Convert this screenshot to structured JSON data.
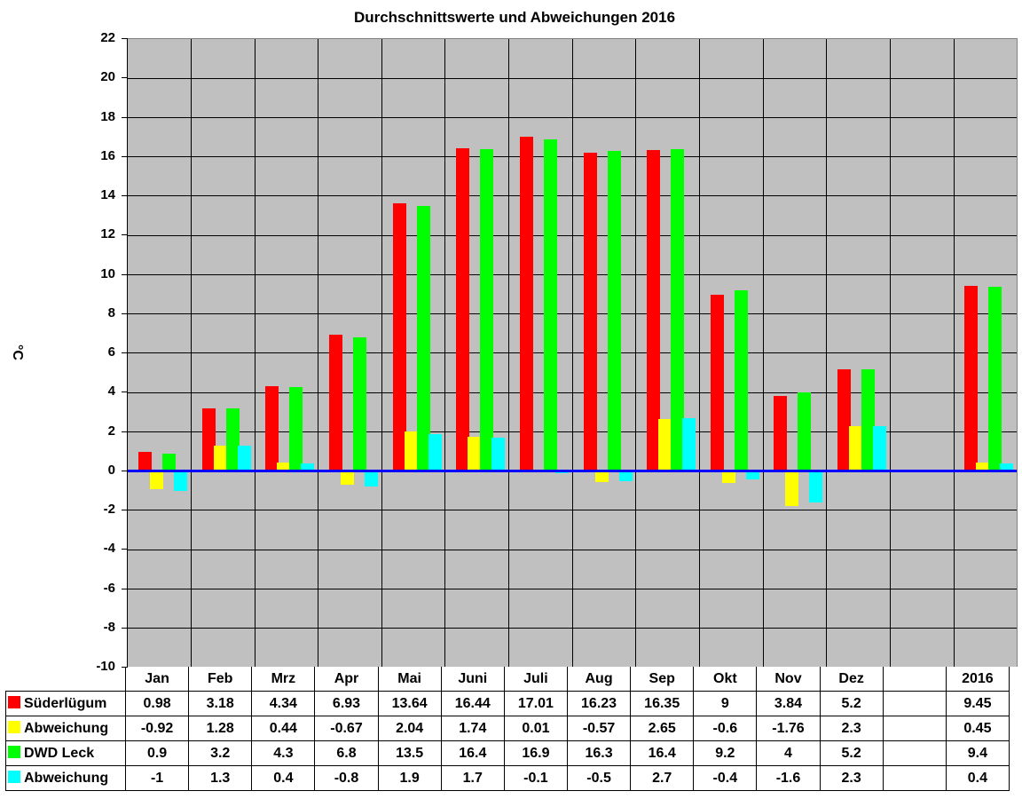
{
  "chart_data": {
    "type": "bar",
    "title": "Durchschnittswerte und Abweichungen 2016",
    "xlabel": "",
    "ylabel": "°C",
    "ylim": [
      -10,
      22
    ],
    "yticks": [
      22,
      20,
      18,
      16,
      14,
      12,
      10,
      8,
      6,
      4,
      2,
      0,
      -2,
      -4,
      -6,
      -8,
      -10
    ],
    "grid": true,
    "legend_position": "data-table-below",
    "categories": [
      "Jan",
      "Feb",
      "Mrz",
      "Apr",
      "Mai",
      "Juni",
      "Juli",
      "Aug",
      "Sep",
      "Okt",
      "Nov",
      "Dez",
      "",
      "2016"
    ],
    "series": [
      {
        "name": "Süderlügum",
        "color": "#ff0000",
        "values": [
          "0.98",
          "3.18",
          "4.34",
          "6.93",
          "13.64",
          "16.44",
          "17.01",
          "16.23",
          "16.35",
          "9",
          "3.84",
          "5.2",
          "",
          "9.45"
        ]
      },
      {
        "name": "Abweichung",
        "color": "#ffff00",
        "values": [
          "-0.92",
          "1.28",
          "0.44",
          "-0.67",
          "2.04",
          "1.74",
          "0.01",
          "-0.57",
          "2.65",
          "-0.6",
          "-1.76",
          "2.3",
          "",
          "0.45"
        ]
      },
      {
        "name": "DWD Leck",
        "color": "#00ff00",
        "values": [
          "0.9",
          "3.2",
          "4.3",
          "6.8",
          "13.5",
          "16.4",
          "16.9",
          "16.3",
          "16.4",
          "9.2",
          "4",
          "5.2",
          "",
          "9.4"
        ]
      },
      {
        "name": "Abweichung",
        "color": "#00ffff",
        "values": [
          "-1",
          "1.3",
          "0.4",
          "-0.8",
          "1.9",
          "1.7",
          "-0.1",
          "-0.5",
          "2.7",
          "-0.4",
          "-1.6",
          "2.3",
          "",
          "0.4"
        ]
      }
    ],
    "zero_line_color": "#0000ff",
    "plot_background": "#c0c0c0"
  }
}
